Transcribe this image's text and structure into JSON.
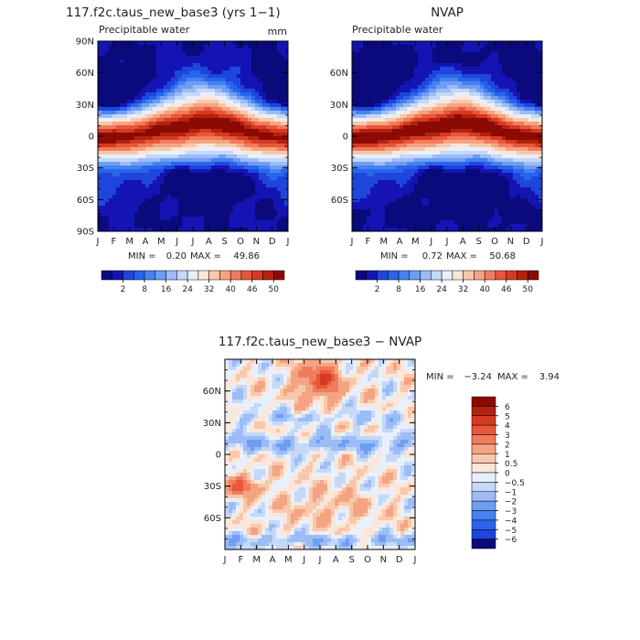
{
  "months": [
    "J",
    "F",
    "M",
    "A",
    "M",
    "J",
    "J",
    "A",
    "S",
    "O",
    "N",
    "D",
    "J"
  ],
  "lat_ticks_left": [
    "90N",
    "60N",
    "30N",
    "0",
    "30S",
    "60S",
    "90S"
  ],
  "lat_ticks_right": [
    "60N",
    "30N",
    "0",
    "30S",
    "60S"
  ],
  "lat_ticks_bottom": [
    "60N",
    "30N",
    "0",
    "30S",
    "60S"
  ],
  "panels": [
    {
      "id": "model",
      "title": "117.f2c.taus_new_base3 (yrs 1−1)",
      "subtitle": "Precipitable water",
      "units": "mm",
      "min_label": "MIN =",
      "min_value": "0.20",
      "max_label": "MAX =",
      "max_value": "49.86"
    },
    {
      "id": "obs",
      "title": "NVAP",
      "subtitle": "Precipitable water",
      "units": "",
      "min_label": "MIN =",
      "min_value": "0.72",
      "max_label": "MAX =",
      "max_value": "50.68"
    }
  ],
  "colorbar_top": {
    "labels": [
      "2",
      "8",
      "16",
      "24",
      "32",
      "40",
      "46",
      "50"
    ],
    "colors": [
      "#0a0a7c",
      "#1414b4",
      "#1e46dc",
      "#2864ec",
      "#4682f0",
      "#6e9ef4",
      "#9cbcf6",
      "#c4d8f8",
      "#e8f0fc",
      "#fbe6d8",
      "#f8c8ac",
      "#f4a482",
      "#f07c5c",
      "#e8573a",
      "#d63a22",
      "#b4220e",
      "#8c0a04"
    ]
  },
  "diff_panel": {
    "title": "117.f2c.taus_new_base3 − NVAP",
    "min_label": "MIN =",
    "min_value": "−3.24",
    "max_label": "MAX =",
    "max_value": "3.94",
    "colorbar_labels": [
      "6",
      "5",
      "4",
      "3",
      "2",
      "1",
      "0.5",
      "0",
      "−0.5",
      "−1",
      "−2",
      "−3",
      "−4",
      "−5",
      "−6"
    ],
    "colorbar_colors": [
      "#8c0a04",
      "#b4220e",
      "#d63a22",
      "#e8573a",
      "#f07c5c",
      "#f4a482",
      "#f8c8ac",
      "#fbe6d8",
      "#e8f0fc",
      "#c4d8f8",
      "#9cbcf6",
      "#6e9ef4",
      "#4682f0",
      "#2864ec",
      "#1e46dc",
      "#0a0a7c"
    ]
  },
  "chart_data": [
    {
      "type": "heatmap",
      "title": "117.f2c.taus_new_base3 (yrs 1−1)",
      "subtitle": "Precipitable water",
      "units": "mm",
      "x": [
        "J",
        "F",
        "M",
        "A",
        "M",
        "J",
        "J",
        "A",
        "S",
        "O",
        "N",
        "D",
        "J"
      ],
      "y": [
        "90S",
        "60S",
        "30S",
        "0",
        "30N",
        "60N",
        "90N"
      ],
      "min": 0.2,
      "max": 49.86,
      "levels": [
        2,
        4,
        6,
        8,
        10,
        13,
        16,
        20,
        24,
        28,
        32,
        36,
        40,
        43,
        46,
        48,
        50
      ]
    },
    {
      "type": "heatmap",
      "title": "NVAP",
      "subtitle": "Precipitable water",
      "x": [
        "J",
        "F",
        "M",
        "A",
        "M",
        "J",
        "J",
        "A",
        "S",
        "O",
        "N",
        "D",
        "J"
      ],
      "y": [
        "60S",
        "30S",
        "0",
        "30N",
        "60N"
      ],
      "min": 0.72,
      "max": 50.68,
      "levels": [
        2,
        4,
        6,
        8,
        10,
        13,
        16,
        20,
        24,
        28,
        32,
        36,
        40,
        43,
        46,
        48,
        50
      ]
    },
    {
      "type": "heatmap",
      "title": "117.f2c.taus_new_base3 − NVAP",
      "x": [
        "J",
        "F",
        "M",
        "A",
        "M",
        "J",
        "J",
        "A",
        "S",
        "O",
        "N",
        "D",
        "J"
      ],
      "y": [
        "60S",
        "30S",
        "0",
        "30N",
        "60N"
      ],
      "min": -3.24,
      "max": 3.94,
      "levels": [
        -6,
        -5,
        -4,
        -3,
        -2,
        -1,
        -0.5,
        0,
        0.5,
        1,
        2,
        3,
        4,
        5,
        6
      ]
    }
  ]
}
